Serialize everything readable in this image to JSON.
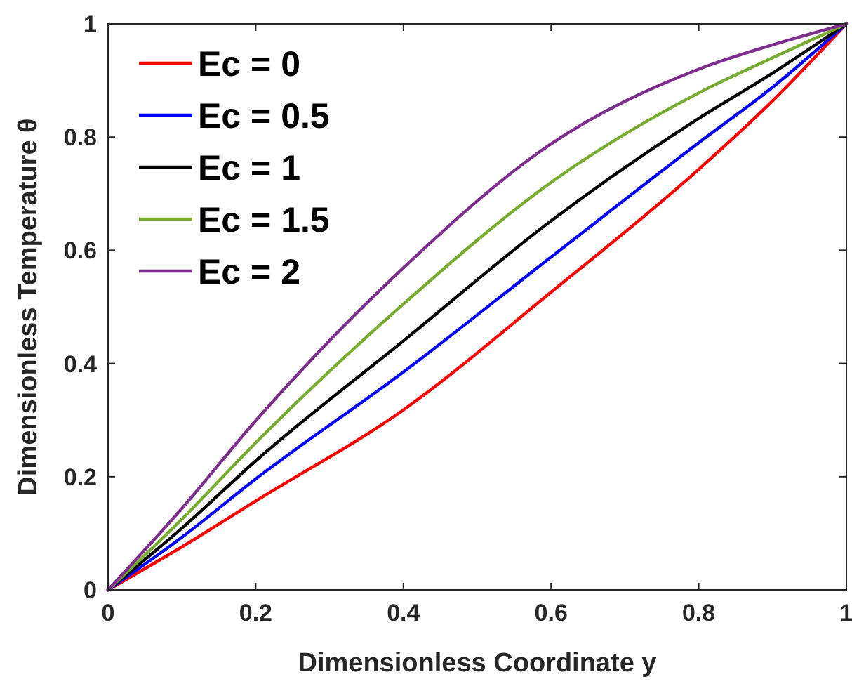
{
  "chart_data": {
    "type": "line",
    "xlabel": "Dimensionless Coordinate y",
    "ylabel": "Dimensionless Temperature θ",
    "x": [
      0,
      0.1,
      0.2,
      0.4,
      0.6,
      0.8,
      0.9,
      1
    ],
    "xlim": [
      0,
      1
    ],
    "ylim": [
      0,
      1
    ],
    "xticks": [
      0,
      0.2,
      0.4,
      0.6,
      0.8,
      1
    ],
    "yticks": [
      0,
      0.2,
      0.4,
      0.6,
      0.8,
      1
    ],
    "grid": false,
    "legend": "top left",
    "marker": "none",
    "line_style": "solid",
    "series": [
      {
        "name": "Ec = 0",
        "color": "#ff0000",
        "values": [
          0,
          0.076,
          0.157,
          0.318,
          0.526,
          0.743,
          0.864,
          1
        ]
      },
      {
        "name": "Ec = 0.5",
        "color": "#0000ff",
        "values": [
          0,
          0.093,
          0.196,
          0.385,
          0.588,
          0.79,
          0.888,
          1
        ]
      },
      {
        "name": "Ec = 1",
        "color": "#000000",
        "values": [
          0,
          0.109,
          0.228,
          0.44,
          0.652,
          0.833,
          0.913,
          1
        ]
      },
      {
        "name": "Ec = 1.5",
        "color": "#77ac30",
        "values": [
          0,
          0.125,
          0.26,
          0.505,
          0.72,
          0.878,
          0.94,
          1
        ]
      },
      {
        "name": "Ec = 2",
        "color": "#7e2f8e",
        "values": [
          0,
          0.144,
          0.299,
          0.569,
          0.788,
          0.92,
          0.963,
          1
        ]
      }
    ]
  }
}
